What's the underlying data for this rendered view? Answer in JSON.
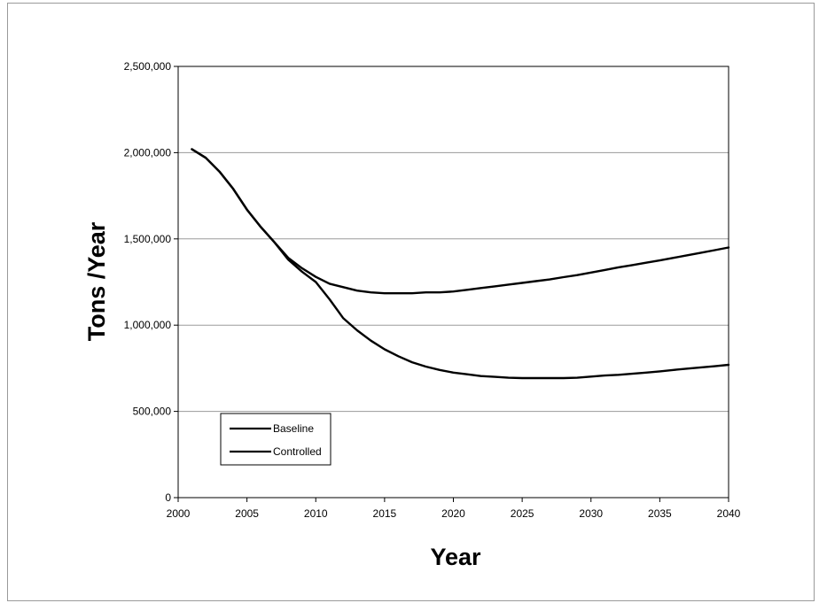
{
  "chart_data": {
    "type": "line",
    "title": "",
    "xlabel": "Year",
    "ylabel": "Tons /Year",
    "xlim": [
      2000,
      2040
    ],
    "ylim": [
      0,
      2500000
    ],
    "xticks": [
      2000,
      2005,
      2010,
      2015,
      2020,
      2025,
      2030,
      2035,
      2040
    ],
    "xtick_labels": [
      "2000",
      "2005",
      "2010",
      "2015",
      "2020",
      "2025",
      "2030",
      "2035",
      "2040"
    ],
    "yticks": [
      0,
      500000,
      1000000,
      1500000,
      2000000,
      2500000
    ],
    "ytick_labels": [
      "0",
      "500,000",
      "1,000,000",
      "1,500,000",
      "2,000,000",
      "2,500,000"
    ],
    "grid": "horizontal",
    "legend": "lower-left",
    "colors": {
      "line": "#000000",
      "grid": "#9a9a9a",
      "frame": "#9a9a9a"
    },
    "series": [
      {
        "name": "Baseline",
        "x": [
          2001,
          2002,
          2003,
          2004,
          2005,
          2006,
          2007,
          2008,
          2009,
          2010,
          2011,
          2012,
          2013,
          2014,
          2015,
          2016,
          2017,
          2018,
          2019,
          2020,
          2021,
          2022,
          2023,
          2024,
          2025,
          2026,
          2027,
          2028,
          2029,
          2030,
          2031,
          2032,
          2033,
          2034,
          2035,
          2036,
          2037,
          2038,
          2039,
          2040
        ],
        "values": [
          2020000,
          1970000,
          1890000,
          1790000,
          1670000,
          1570000,
          1480000,
          1390000,
          1330000,
          1280000,
          1240000,
          1220000,
          1200000,
          1190000,
          1185000,
          1185000,
          1185000,
          1190000,
          1190000,
          1195000,
          1205000,
          1215000,
          1225000,
          1235000,
          1245000,
          1255000,
          1265000,
          1278000,
          1290000,
          1305000,
          1320000,
          1335000,
          1348000,
          1362000,
          1375000,
          1390000,
          1405000,
          1420000,
          1435000,
          1450000
        ]
      },
      {
        "name": "Controlled",
        "x": [
          2001,
          2002,
          2003,
          2004,
          2005,
          2006,
          2007,
          2008,
          2009,
          2010,
          2011,
          2012,
          2013,
          2014,
          2015,
          2016,
          2017,
          2018,
          2019,
          2020,
          2021,
          2022,
          2023,
          2024,
          2025,
          2026,
          2027,
          2028,
          2029,
          2030,
          2031,
          2032,
          2033,
          2034,
          2035,
          2036,
          2037,
          2038,
          2039,
          2040
        ],
        "values": [
          2020000,
          1970000,
          1890000,
          1790000,
          1670000,
          1570000,
          1480000,
          1380000,
          1310000,
          1250000,
          1150000,
          1040000,
          970000,
          910000,
          860000,
          820000,
          785000,
          760000,
          740000,
          725000,
          715000,
          705000,
          700000,
          695000,
          693000,
          693000,
          693000,
          693000,
          695000,
          702000,
          708000,
          712000,
          718000,
          725000,
          732000,
          740000,
          748000,
          755000,
          762000,
          770000
        ]
      }
    ]
  }
}
